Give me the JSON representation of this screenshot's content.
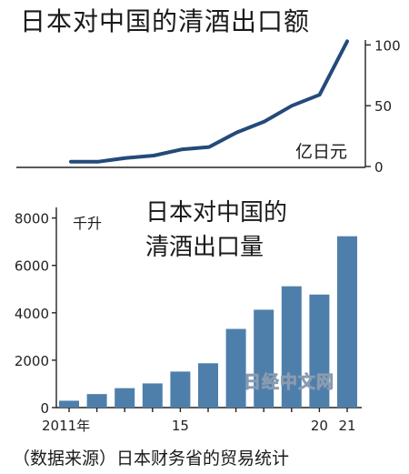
{
  "chart_data": [
    {
      "type": "line",
      "title": "日本对中国的清酒出口额",
      "unit_label": "亿日元",
      "x": [
        2011,
        2012,
        2013,
        2014,
        2015,
        2016,
        2017,
        2018,
        2019,
        2020,
        2021
      ],
      "values": [
        4,
        4,
        7,
        9,
        14,
        16,
        28,
        37,
        50,
        59,
        103
      ],
      "ylim": [
        0,
        110
      ],
      "yticks": [
        0,
        50,
        100
      ],
      "axis_side": "right",
      "line_color": "#244a7a"
    },
    {
      "type": "bar",
      "title_lines": [
        "日本对中国的",
        "清酒出口量"
      ],
      "unit_label": "千升",
      "categories": [
        2011,
        2012,
        2013,
        2014,
        2015,
        2016,
        2017,
        2018,
        2019,
        2020,
        2021
      ],
      "values": [
        290,
        570,
        820,
        1020,
        1520,
        1870,
        3320,
        4130,
        5120,
        4770,
        7230
      ],
      "ylim": [
        0,
        8600
      ],
      "yticks": [
        0,
        2000,
        4000,
        6000,
        8000
      ],
      "xtick_labels": [
        {
          "index": 0,
          "label": "2011年"
        },
        {
          "index": 4,
          "label": "15"
        },
        {
          "index": 9,
          "label": "20"
        },
        {
          "index": 10,
          "label": "21"
        }
      ],
      "bar_color": "#4e7fab"
    }
  ],
  "source": "（数据来源）日本财务省的贸易统计",
  "watermark": "日经中文网"
}
